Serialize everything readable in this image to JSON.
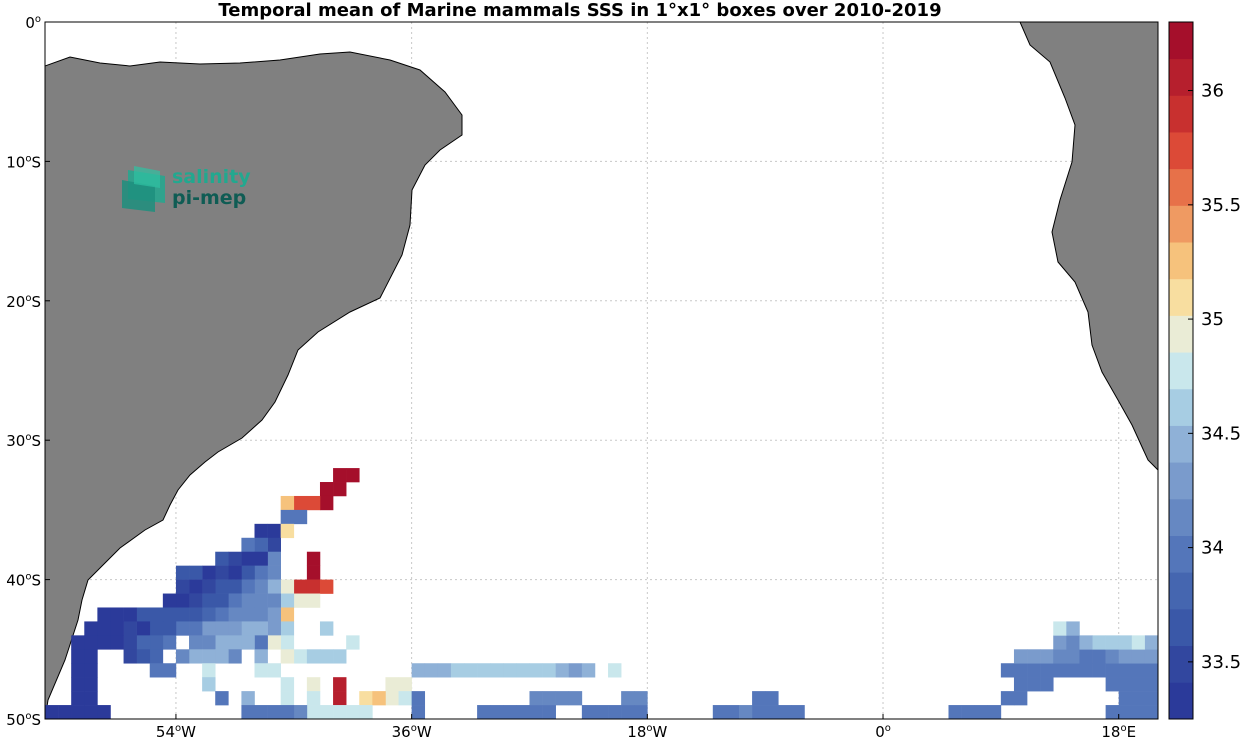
{
  "title": "Temporal mean of Marine mammals SSS in 1°x1° boxes over 2010-2019",
  "logo": {
    "line1": "salinity",
    "line2": "pi-mep",
    "color1": "#22a88f",
    "color2": "#0f5c54"
  },
  "colors": {
    "land": "#808080",
    "ocean": "#ffffff",
    "coast": "#000000",
    "grid": "#c8c8c8"
  },
  "map": {
    "lon_range": [
      -64,
      21
    ],
    "lat_range": [
      -50,
      0
    ],
    "x_ticks": [
      {
        "value": -54,
        "num": "54",
        "dir": "W"
      },
      {
        "value": -36,
        "num": "36",
        "dir": "W"
      },
      {
        "value": -18,
        "num": "18",
        "dir": "W"
      },
      {
        "value": 0,
        "num": "0",
        "dir": ""
      },
      {
        "value": 18,
        "num": "18",
        "dir": "E"
      }
    ],
    "y_ticks": [
      {
        "value": 0,
        "num": "0",
        "dir": ""
      },
      {
        "value": -10,
        "num": "10",
        "dir": "S"
      },
      {
        "value": -20,
        "num": "20",
        "dir": "S"
      },
      {
        "value": -30,
        "num": "30",
        "dir": "S"
      },
      {
        "value": -40,
        "num": "40",
        "dir": "S"
      },
      {
        "value": -50,
        "num": "50",
        "dir": "S"
      }
    ]
  },
  "colorbar": {
    "range": [
      33.25,
      36.3
    ],
    "ticks": [
      "33.5",
      "34",
      "34.5",
      "35",
      "35.5",
      "36"
    ],
    "colors": [
      "#2b3a9a",
      "#32479f",
      "#3a58a8",
      "#4566b0",
      "#5476ba",
      "#6688c2",
      "#7a9bcc",
      "#8fb1d7",
      "#a7cde3",
      "#c9e7ec",
      "#eaecd6",
      "#f8dea0",
      "#f6c27c",
      "#ef9a62",
      "#e77149",
      "#dc4a37",
      "#c8302f",
      "#b61f2d",
      "#a50f2b"
    ]
  },
  "chart_data": {
    "type": "heatmap",
    "title": "Temporal mean of Marine mammals SSS in 1°x1° boxes over 2010-2019",
    "cell_size_deg": 1,
    "cells": [
      [
        -41,
        -32.5,
        36.3
      ],
      [
        -42,
        -32.5,
        36.3
      ],
      [
        -42,
        -33.5,
        36.3
      ],
      [
        -43,
        -33.5,
        36.3
      ],
      [
        -43,
        -34.5,
        36.2
      ],
      [
        -44,
        -34.5,
        35.8
      ],
      [
        -45,
        -34.5,
        35.8
      ],
      [
        -46,
        -34.5,
        35.3
      ],
      [
        -45,
        -35.5,
        33.9
      ],
      [
        -46,
        -35.5,
        33.9
      ],
      [
        -47,
        -36.5,
        33.4
      ],
      [
        -48,
        -36.5,
        33.4
      ],
      [
        -46,
        -36.5,
        35.1
      ],
      [
        -47,
        -37.5,
        33.5
      ],
      [
        -48,
        -37.5,
        33.8
      ],
      [
        -49,
        -37.5,
        33.9
      ],
      [
        -47,
        -38.5,
        34.1
      ],
      [
        -48,
        -38.5,
        33.4
      ],
      [
        -49,
        -38.5,
        33.4
      ],
      [
        -50,
        -38.5,
        33.5
      ],
      [
        -51,
        -38.5,
        33.7
      ],
      [
        -44,
        -38.5,
        36.2
      ],
      [
        -44,
        -39.5,
        36.2
      ],
      [
        -47,
        -39.5,
        34.1
      ],
      [
        -48,
        -39.5,
        33.9
      ],
      [
        -49,
        -39.5,
        33.6
      ],
      [
        -50,
        -39.5,
        33.4
      ],
      [
        -51,
        -39.5,
        33.5
      ],
      [
        -52,
        -39.5,
        33.4
      ],
      [
        -53,
        -39.5,
        33.7
      ],
      [
        -54,
        -39.5,
        33.7
      ],
      [
        -45,
        -40.5,
        35.9
      ],
      [
        -44,
        -40.5,
        35.9
      ],
      [
        -43,
        -40.5,
        35.8
      ],
      [
        -46,
        -40.5,
        34.9
      ],
      [
        -47,
        -40.5,
        34.4
      ],
      [
        -48,
        -40.5,
        34.1
      ],
      [
        -49,
        -40.5,
        33.9
      ],
      [
        -50,
        -40.5,
        33.7
      ],
      [
        -51,
        -40.5,
        33.6
      ],
      [
        -52,
        -40.5,
        33.5
      ],
      [
        -53,
        -40.5,
        33.3
      ],
      [
        -54,
        -40.5,
        33.5
      ],
      [
        -45,
        -41.5,
        34.9
      ],
      [
        -44,
        -41.5,
        34.9
      ],
      [
        -46,
        -41.5,
        34.6
      ],
      [
        -47,
        -41.5,
        34.2
      ],
      [
        -48,
        -41.5,
        34.1
      ],
      [
        -49,
        -41.5,
        34.1
      ],
      [
        -50,
        -41.5,
        33.9
      ],
      [
        -51,
        -41.5,
        33.7
      ],
      [
        -52,
        -41.5,
        33.6
      ],
      [
        -53,
        -41.5,
        33.5
      ],
      [
        -54,
        -41.5,
        33.4
      ],
      [
        -55,
        -41.5,
        33.3
      ],
      [
        -46,
        -42.5,
        35.2
      ],
      [
        -47,
        -42.5,
        34.3
      ],
      [
        -48,
        -42.5,
        34.2
      ],
      [
        -49,
        -42.5,
        34.2
      ],
      [
        -50,
        -42.5,
        34.1
      ],
      [
        -51,
        -42.5,
        34.0
      ],
      [
        -52,
        -42.5,
        33.8
      ],
      [
        -53,
        -42.5,
        33.6
      ],
      [
        -54,
        -42.5,
        33.6
      ],
      [
        -55,
        -42.5,
        33.7
      ],
      [
        -56,
        -42.5,
        33.6
      ],
      [
        -57,
        -42.5,
        33.6
      ],
      [
        -58,
        -42.5,
        33.4
      ],
      [
        -59,
        -42.5,
        33.4
      ],
      [
        -60,
        -42.5,
        33.3
      ],
      [
        -46,
        -43.5,
        34.6
      ],
      [
        -47,
        -43.5,
        34.3
      ],
      [
        -48,
        -43.5,
        34.5
      ],
      [
        -49,
        -43.5,
        34.4
      ],
      [
        -50,
        -43.5,
        34.3
      ],
      [
        -51,
        -43.5,
        34.3
      ],
      [
        -52,
        -43.5,
        34.3
      ],
      [
        -53,
        -43.5,
        34.0
      ],
      [
        -54,
        -43.5,
        33.9
      ],
      [
        -55,
        -43.5,
        33.6
      ],
      [
        -56,
        -43.5,
        33.6
      ],
      [
        -57,
        -43.5,
        33.3
      ],
      [
        -58,
        -43.5,
        33.5
      ],
      [
        -59,
        -43.5,
        33.4
      ],
      [
        -60,
        -43.5,
        33.4
      ],
      [
        -61,
        -43.5,
        33.4
      ],
      [
        -43,
        -43.5,
        34.6
      ],
      [
        -46,
        -44.5,
        34.8
      ],
      [
        -47,
        -44.5,
        34.9
      ],
      [
        -48,
        -44.5,
        34.0
      ],
      [
        -49,
        -44.5,
        34.4
      ],
      [
        -50,
        -44.5,
        34.4
      ],
      [
        -51,
        -44.5,
        34.4
      ],
      [
        -52,
        -44.5,
        34.2
      ],
      [
        -53,
        -44.5,
        34.2
      ],
      [
        -55,
        -44.5,
        33.9
      ],
      [
        -56,
        -44.5,
        33.8
      ],
      [
        -57,
        -44.5,
        33.8
      ],
      [
        -58,
        -44.5,
        33.5
      ],
      [
        -59,
        -44.5,
        33.4
      ],
      [
        -60,
        -44.5,
        33.4
      ],
      [
        -61,
        -44.5,
        33.3
      ],
      [
        -62,
        -44.5,
        33.3
      ],
      [
        -41,
        -44.5,
        34.8
      ],
      [
        -45,
        -45.5,
        34.7
      ],
      [
        -46,
        -45.5,
        34.9
      ],
      [
        -48,
        -45.5,
        34.4
      ],
      [
        -50,
        -45.5,
        34.1
      ],
      [
        -51,
        -45.5,
        34.4
      ],
      [
        -52,
        -45.5,
        34.4
      ],
      [
        -53,
        -45.5,
        34.4
      ],
      [
        -54,
        -45.5,
        34.2
      ],
      [
        -56,
        -45.5,
        33.8
      ],
      [
        -57,
        -45.5,
        33.7
      ],
      [
        -58,
        -45.5,
        33.5
      ],
      [
        -61,
        -45.5,
        33.4
      ],
      [
        -62,
        -45.5,
        33.3
      ],
      [
        -42,
        -45.5,
        34.6
      ],
      [
        -43,
        -45.5,
        34.6
      ],
      [
        -44,
        -45.5,
        34.6
      ],
      [
        -48,
        -46.5,
        34.7
      ],
      [
        -47,
        -46.5,
        34.7
      ],
      [
        -52,
        -46.5,
        34.7
      ],
      [
        -55,
        -46.5,
        33.9
      ],
      [
        -56,
        -46.5,
        33.9
      ],
      [
        -61,
        -46.5,
        33.4
      ],
      [
        -62,
        -46.5,
        33.4
      ],
      [
        -36,
        -46.5,
        34.5
      ],
      [
        -35,
        -46.5,
        34.5
      ],
      [
        -34,
        -46.5,
        34.4
      ],
      [
        -33,
        -46.5,
        34.6
      ],
      [
        -32,
        -46.5,
        34.6
      ],
      [
        -31,
        -46.5,
        34.6
      ],
      [
        -30,
        -46.5,
        34.6
      ],
      [
        -29,
        -46.5,
        34.6
      ],
      [
        -28,
        -46.5,
        34.6
      ],
      [
        -27,
        -46.5,
        34.6
      ],
      [
        -26,
        -46.5,
        34.6
      ],
      [
        -25,
        -46.5,
        34.4
      ],
      [
        -24,
        -46.5,
        34.3
      ],
      [
        -23,
        -46.5,
        34.4
      ],
      [
        -21,
        -46.5,
        34.7
      ],
      [
        -46,
        -47.5,
        34.8
      ],
      [
        -44,
        -47.5,
        34.9
      ],
      [
        -42,
        -47.5,
        36.0
      ],
      [
        -52,
        -47.5,
        34.6
      ],
      [
        -38,
        -47.5,
        34.9
      ],
      [
        -37,
        -47.5,
        34.9
      ],
      [
        -61,
        -47.5,
        33.4
      ],
      [
        -62,
        -47.5,
        33.4
      ],
      [
        -42,
        -48.5,
        36.1
      ],
      [
        -44,
        -48.5,
        34.8
      ],
      [
        -46,
        -48.5,
        34.7
      ],
      [
        -49,
        -48.5,
        34.5
      ],
      [
        -51,
        -48.5,
        34.0
      ],
      [
        -40,
        -48.5,
        35.1
      ],
      [
        -38,
        -48.5,
        34.9
      ],
      [
        -39,
        -48.5,
        35.2
      ],
      [
        -37,
        -48.5,
        34.8
      ],
      [
        -36,
        -48.5,
        33.9
      ],
      [
        -27,
        -48.5,
        34.1
      ],
      [
        -26,
        -48.5,
        34.1
      ],
      [
        -25,
        -48.5,
        34.1
      ],
      [
        -24,
        -48.5,
        34.1
      ],
      [
        -19,
        -48.5,
        34.1
      ],
      [
        -20,
        -48.5,
        34.1
      ],
      [
        -10,
        -48.5,
        34.0
      ],
      [
        -9,
        -48.5,
        34.0
      ],
      [
        -61,
        -48.5,
        33.4
      ],
      [
        -62,
        -48.5,
        33.4
      ],
      [
        -40,
        -49.5,
        34.8
      ],
      [
        -41,
        -49.5,
        34.8
      ],
      [
        -42,
        -49.5,
        34.8
      ],
      [
        -43,
        -49.5,
        34.7
      ],
      [
        -44,
        -49.5,
        34.7
      ],
      [
        -45,
        -49.5,
        34.2
      ],
      [
        -46,
        -49.5,
        34.0
      ],
      [
        -47,
        -49.5,
        34.0
      ],
      [
        -48,
        -49.5,
        34.0
      ],
      [
        -49,
        -49.5,
        33.9
      ],
      [
        -36,
        -49.5,
        33.9
      ],
      [
        -60,
        -49.5,
        33.4
      ],
      [
        -61,
        -49.5,
        33.4
      ],
      [
        -62,
        -49.5,
        33.4
      ],
      [
        -63,
        -49.5,
        33.4
      ],
      [
        -64,
        -49.5,
        33.4
      ],
      [
        -31,
        -49.5,
        34.0
      ],
      [
        -30,
        -49.5,
        34.0
      ],
      [
        -29,
        -49.5,
        34.0
      ],
      [
        -28,
        -49.5,
        34.0
      ],
      [
        -27,
        -49.5,
        34.0
      ],
      [
        -26,
        -49.5,
        34.0
      ],
      [
        -23,
        -49.5,
        34.0
      ],
      [
        -22,
        -49.5,
        34.0
      ],
      [
        -21,
        -49.5,
        34.0
      ],
      [
        -20,
        -49.5,
        34.0
      ],
      [
        -19,
        -49.5,
        34.0
      ],
      [
        -13,
        -49.5,
        34.0
      ],
      [
        -12,
        -49.5,
        34.0
      ],
      [
        -11,
        -49.5,
        34.1
      ],
      [
        -10,
        -49.5,
        34.0
      ],
      [
        -9,
        -49.5,
        34.0
      ],
      [
        -8,
        -49.5,
        34.0
      ],
      [
        -7,
        -49.5,
        34.0
      ],
      [
        5,
        -49.5,
        34.0
      ],
      [
        6,
        -49.5,
        34.0
      ],
      [
        7,
        -49.5,
        34.0
      ],
      [
        8,
        -49.5,
        34.0
      ],
      [
        9,
        -48.5,
        34.0
      ],
      [
        10,
        -48.5,
        34.0
      ],
      [
        10,
        -47.5,
        34.0
      ],
      [
        11,
        -47.5,
        34.0
      ],
      [
        12,
        -47.5,
        34.0
      ],
      [
        9,
        -46.5,
        34.0
      ],
      [
        10,
        -46.5,
        34.0
      ],
      [
        11,
        -46.5,
        34.0
      ],
      [
        12,
        -46.5,
        34.0
      ],
      [
        13,
        -46.5,
        34.0
      ],
      [
        14,
        -46.5,
        33.9
      ],
      [
        15,
        -46.5,
        33.9
      ],
      [
        16,
        -46.5,
        33.9
      ],
      [
        17,
        -46.5,
        33.9
      ],
      [
        18,
        -46.5,
        33.9
      ],
      [
        19,
        -46.5,
        33.9
      ],
      [
        20,
        -46.5,
        33.9
      ],
      [
        10,
        -45.5,
        34.3
      ],
      [
        11,
        -45.5,
        34.3
      ],
      [
        12,
        -45.5,
        34.3
      ],
      [
        13,
        -45.5,
        34.1
      ],
      [
        14,
        -45.5,
        34.1
      ],
      [
        15,
        -45.5,
        33.9
      ],
      [
        16,
        -45.5,
        33.9
      ],
      [
        17,
        -45.5,
        34.1
      ],
      [
        18,
        -45.5,
        34.3
      ],
      [
        19,
        -45.5,
        34.3
      ],
      [
        20,
        -45.5,
        34.3
      ],
      [
        13,
        -44.5,
        34.3
      ],
      [
        14,
        -44.5,
        34.1
      ],
      [
        15,
        -44.5,
        34.4
      ],
      [
        16,
        -44.5,
        34.6
      ],
      [
        17,
        -44.5,
        34.6
      ],
      [
        18,
        -44.5,
        34.6
      ],
      [
        19,
        -44.5,
        34.7
      ],
      [
        20,
        -44.5,
        34.5
      ],
      [
        13,
        -43.5,
        34.7
      ],
      [
        14,
        -43.5,
        34.4
      ],
      [
        17,
        -47.5,
        34.0
      ],
      [
        18,
        -47.5,
        34.0
      ],
      [
        19,
        -47.5,
        34.0
      ],
      [
        20,
        -47.5,
        34.0
      ],
      [
        18,
        -48.5,
        34.0
      ],
      [
        19,
        -48.5,
        34.0
      ],
      [
        20,
        -48.5,
        34.0
      ],
      [
        18,
        -49.5,
        34.0
      ],
      [
        19,
        -49.5,
        34.0
      ],
      [
        20,
        -49.5,
        34.0
      ],
      [
        17,
        -49.5,
        34.0
      ]
    ]
  }
}
